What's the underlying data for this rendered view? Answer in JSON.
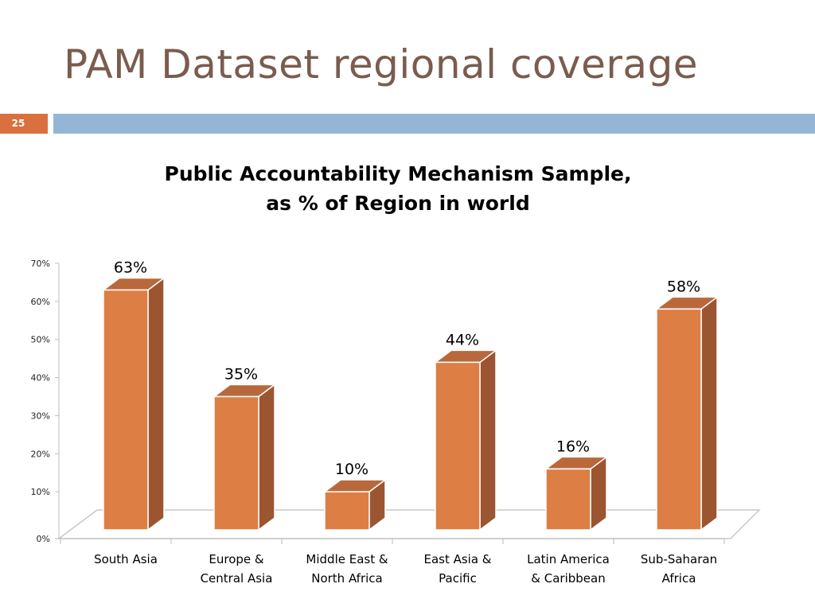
{
  "slide": {
    "title": "PAM Dataset regional coverage",
    "slide_number": "25"
  },
  "colors": {
    "title": "#7a5c4e",
    "accent_orange": "#d9703e",
    "accent_blue": "#93b6d6",
    "bar_front": "#dd7e45",
    "bar_side": "#9b5531",
    "bar_top": "#b9683c"
  },
  "chart_data": {
    "type": "bar",
    "title_lines": [
      "Public Accountability Mechanism Sample,",
      "as % of Region in world"
    ],
    "categories": [
      [
        "South Asia"
      ],
      [
        "Europe &",
        "Central Asia"
      ],
      [
        "Middle East &",
        "North Africa"
      ],
      [
        "East Asia &",
        "Pacific"
      ],
      [
        "Latin America",
        "& Caribbean"
      ],
      [
        "Sub-Saharan",
        "Africa"
      ]
    ],
    "values": [
      63,
      35,
      10,
      44,
      16,
      58
    ],
    "data_labels": [
      "63%",
      "35%",
      "10%",
      "44%",
      "16%",
      "58%"
    ],
    "y_ticks": [
      "0%",
      "10%",
      "20%",
      "30%",
      "40%",
      "50%",
      "60%",
      "70%"
    ],
    "ylim": [
      0,
      70
    ],
    "grid": false,
    "three_d": true
  }
}
